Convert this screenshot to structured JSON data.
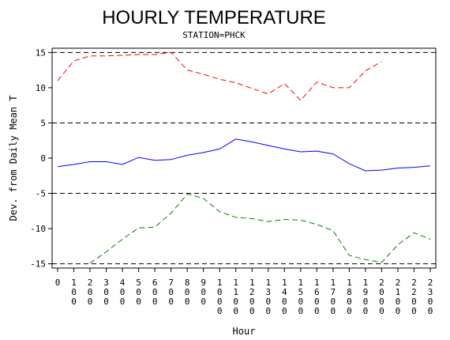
{
  "chart_data": {
    "type": "line",
    "title": "HOURLY TEMPERATURE",
    "subtitle": "STATION=PHCK",
    "xlabel": "Hour",
    "ylabel": "Dev. from Daily Mean T",
    "x": [
      0,
      100,
      200,
      300,
      400,
      500,
      600,
      700,
      800,
      900,
      1000,
      1100,
      1200,
      1300,
      1400,
      1500,
      1600,
      1700,
      1800,
      1900,
      2000,
      2100,
      2200,
      2300
    ],
    "x_tick_labels": [
      "0",
      "100",
      "200",
      "300",
      "400",
      "500",
      "600",
      "700",
      "800",
      "900",
      "1000",
      "1100",
      "1200",
      "1300",
      "1400",
      "1500",
      "1600",
      "1700",
      "1800",
      "1900",
      "2000",
      "2100",
      "2200",
      "2300"
    ],
    "y_ticks": [
      15,
      10,
      5,
      0,
      -5,
      -10,
      -15
    ],
    "ylim": [
      -15.6,
      15.6
    ],
    "reference_lines": [
      15,
      5,
      -5,
      -15
    ],
    "series": [
      {
        "color": "#ff0000",
        "dash": "dashed",
        "values": [
          11.0,
          13.8,
          14.5,
          14.5,
          14.6,
          14.7,
          14.7,
          15.0,
          12.5,
          11.9,
          11.2,
          10.7,
          9.9,
          9.1,
          10.6,
          8.2,
          10.8,
          10.0,
          10.0,
          12.4,
          13.7,
          null,
          null,
          null
        ]
      },
      {
        "color": "#0000ff",
        "dash": "solid",
        "values": [
          -1.2,
          -0.9,
          -0.5,
          -0.5,
          -0.9,
          0.1,
          -0.3,
          -0.2,
          0.4,
          0.8,
          1.3,
          2.7,
          2.3,
          1.8,
          1.3,
          0.9,
          1.0,
          0.6,
          -0.8,
          -1.8,
          -1.7,
          -1.4,
          -1.3,
          -1.1
        ]
      },
      {
        "color": "#008000",
        "dash": "dashed",
        "values": [
          null,
          null,
          -14.9,
          -13.3,
          -11.5,
          -9.9,
          -9.8,
          -7.8,
          -5.1,
          -5.7,
          -7.6,
          -8.4,
          -8.6,
          -9.0,
          -8.7,
          -8.8,
          -9.4,
          -10.3,
          -13.8,
          -14.4,
          -14.8,
          -12.3,
          -10.6,
          -11.5
        ]
      }
    ]
  }
}
